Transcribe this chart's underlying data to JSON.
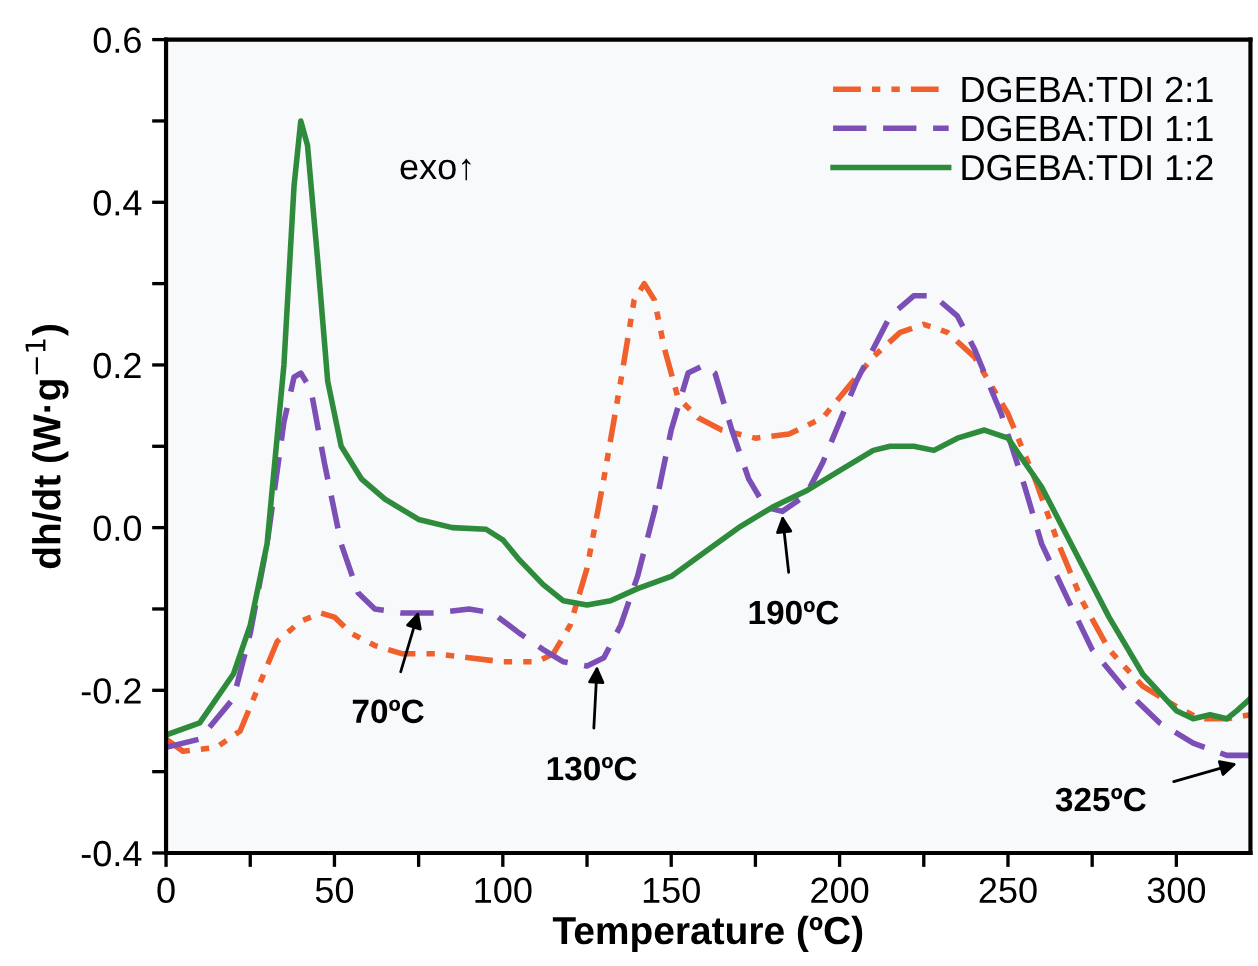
{
  "chart_data": {
    "type": "line",
    "xlabel": "Temperature (ºC)",
    "ylabel": "dh/dt (W·g$^{−1}$)",
    "xlim": [
      0,
      322
    ],
    "ylim": [
      -0.4,
      0.6
    ],
    "xticks": [
      0,
      {
        "value": 25,
        "label": null
      },
      50,
      {
        "value": 75,
        "label": null
      },
      100,
      {
        "value": 125,
        "label": null
      },
      150,
      {
        "value": 175,
        "label": null
      },
      200,
      {
        "value": 225,
        "label": null
      },
      250,
      {
        "value": 275,
        "label": null
      },
      300
    ],
    "yticks": [
      {
        "value": -0.4,
        "label": "-0.4"
      },
      {
        "value": -0.3,
        "label": null
      },
      {
        "value": -0.2,
        "label": "-0.2"
      },
      {
        "value": -0.1,
        "label": null
      },
      {
        "value": 0,
        "label": "0.0"
      },
      {
        "value": 0.1,
        "label": null
      },
      {
        "value": 0.2,
        "label": "0.2"
      },
      {
        "value": 0.3,
        "label": null
      },
      {
        "value": 0.4,
        "label": "0.4"
      },
      {
        "value": 0.5,
        "label": null
      },
      {
        "value": 0.6,
        "label": "0.6"
      }
    ],
    "grid": false,
    "legend": "top right",
    "series": [
      {
        "name": "DGEBA:TDI 2:1",
        "color": "#f0602c",
        "line_style": "dashdotdot",
        "x": [
          0,
          5,
          15,
          22,
          28,
          33,
          40,
          46,
          50,
          55,
          62,
          70,
          80,
          90,
          100,
          110,
          115,
          120,
          125,
          130,
          135,
          139,
          142,
          145,
          148,
          152,
          158,
          165,
          175,
          185,
          195,
          202,
          210,
          218,
          225,
          232,
          240,
          250,
          258,
          265,
          272,
          280,
          290,
          300,
          307,
          315,
          322
        ],
        "values": [
          -0.26,
          -0.275,
          -0.27,
          -0.25,
          -0.19,
          -0.14,
          -0.115,
          -0.105,
          -0.11,
          -0.13,
          -0.145,
          -0.155,
          -0.155,
          -0.16,
          -0.165,
          -0.165,
          -0.155,
          -0.12,
          -0.05,
          0.06,
          0.18,
          0.28,
          0.3,
          0.28,
          0.22,
          0.16,
          0.135,
          0.12,
          0.11,
          0.115,
          0.135,
          0.17,
          0.21,
          0.24,
          0.25,
          0.24,
          0.21,
          0.14,
          0.06,
          -0.02,
          -0.09,
          -0.15,
          -0.195,
          -0.22,
          -0.235,
          -0.235,
          -0.23
        ]
      },
      {
        "name": "DGEBA:TDI 1:1",
        "color": "#7b4fb5",
        "line_style": "dashed",
        "x": [
          0,
          10,
          20,
          25,
          30,
          35,
          38,
          40,
          43,
          47,
          52,
          57,
          62,
          70,
          80,
          90,
          97,
          105,
          112,
          118,
          125,
          130,
          135,
          140,
          145,
          150,
          155,
          160,
          163,
          168,
          173,
          178,
          183,
          190,
          195,
          200,
          205,
          210,
          215,
          222,
          228,
          235,
          240,
          248,
          255,
          260,
          268,
          275,
          285,
          295,
          305,
          315,
          322
        ],
        "values": [
          -0.27,
          -0.26,
          -0.21,
          -0.13,
          -0.02,
          0.13,
          0.185,
          0.19,
          0.17,
          0.08,
          -0.02,
          -0.08,
          -0.1,
          -0.105,
          -0.105,
          -0.1,
          -0.105,
          -0.13,
          -0.15,
          -0.165,
          -0.17,
          -0.16,
          -0.12,
          -0.06,
          0.02,
          0.12,
          0.19,
          0.2,
          0.19,
          0.12,
          0.06,
          0.025,
          0.02,
          0.04,
          0.08,
          0.13,
          0.18,
          0.22,
          0.26,
          0.285,
          0.285,
          0.26,
          0.22,
          0.14,
          0.05,
          -0.02,
          -0.09,
          -0.15,
          -0.2,
          -0.24,
          -0.265,
          -0.28,
          -0.28
        ]
      },
      {
        "name": "DGEBA:TDI 1:2",
        "color": "#2e8b3c",
        "line_style": "solid",
        "x": [
          0,
          10,
          20,
          25,
          30,
          35,
          38,
          40,
          42,
          45,
          48,
          52,
          58,
          65,
          75,
          85,
          95,
          100,
          105,
          112,
          118,
          125,
          132,
          140,
          150,
          160,
          170,
          180,
          190,
          200,
          210,
          215,
          222,
          228,
          235,
          243,
          250,
          260,
          270,
          280,
          290,
          300,
          305,
          310,
          315,
          318,
          322
        ],
        "values": [
          -0.255,
          -0.24,
          -0.18,
          -0.12,
          -0.02,
          0.2,
          0.42,
          0.5,
          0.47,
          0.33,
          0.18,
          0.1,
          0.06,
          0.035,
          0.01,
          0.0,
          -0.002,
          -0.015,
          -0.04,
          -0.07,
          -0.09,
          -0.095,
          -0.09,
          -0.075,
          -0.06,
          -0.03,
          0.0,
          0.025,
          0.045,
          0.07,
          0.095,
          0.1,
          0.1,
          0.095,
          0.11,
          0.12,
          0.11,
          0.05,
          -0.03,
          -0.11,
          -0.18,
          -0.225,
          -0.235,
          -0.23,
          -0.235,
          -0.225,
          -0.21
        ]
      }
    ],
    "annotations": [
      "exo↑",
      {
        "text": "70ºC",
        "x": 75,
        "y": -0.103
      },
      {
        "text": "130ºC",
        "x": 128,
        "y": -0.17
      },
      {
        "text": "190ºC",
        "x": 183,
        "y": 0.015
      },
      {
        "text": "325ºC",
        "x": 318,
        "y": -0.29
      }
    ]
  }
}
